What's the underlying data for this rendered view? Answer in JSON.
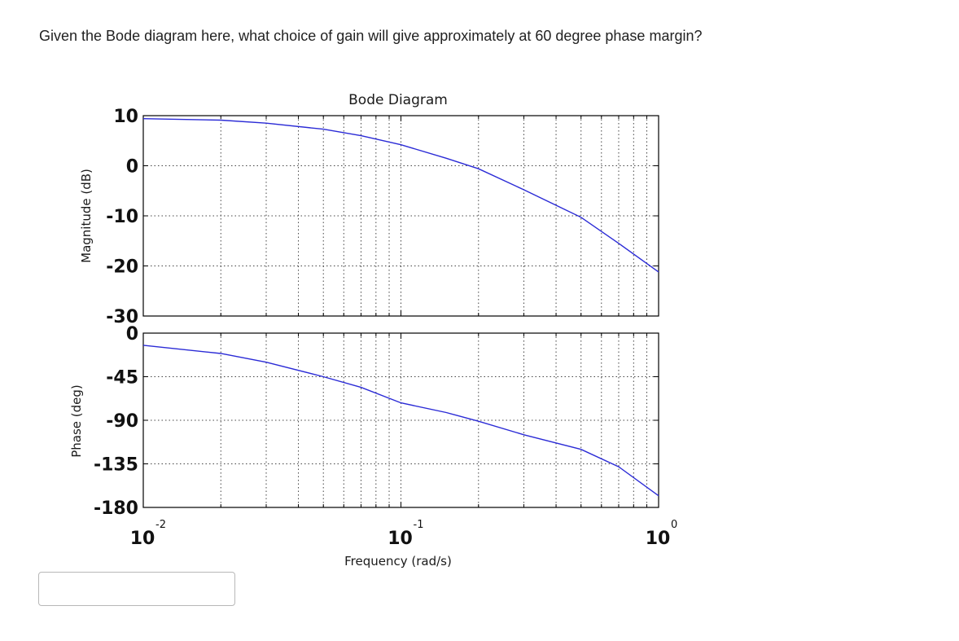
{
  "question": {
    "text": "Given the Bode diagram here, what choice of gain will give approximately at 60 degree phase margin?"
  },
  "answer": {
    "value": "",
    "placeholder": ""
  },
  "colors": {
    "curve": "#2b2bd6",
    "axes": "#000000",
    "grid": "#444444"
  },
  "chart_data": {
    "type": "line",
    "title": "Bode Diagram",
    "xlabel": "Frequency  (rad/s)",
    "xscale": "log",
    "xlim": [
      0.01,
      1
    ],
    "x_ticks": [
      {
        "base": "10",
        "exp": "-2",
        "value": 0.01
      },
      {
        "base": "10",
        "exp": "-1",
        "value": 0.1
      },
      {
        "base": "10",
        "exp": "0",
        "value": 1
      }
    ],
    "grid": true,
    "panels": [
      {
        "name": "magnitude",
        "ylabel": "Magnitude (dB)",
        "ylim": [
          -30,
          10
        ],
        "yticks": [
          10,
          0,
          -10,
          -20,
          -30
        ],
        "ytick_labels": [
          "10",
          "0",
          "-10",
          "-20",
          "-30"
        ],
        "series": {
          "x": [
            0.01,
            0.02,
            0.03,
            0.05,
            0.07,
            0.1,
            0.15,
            0.2,
            0.3,
            0.5,
            0.7,
            1.0
          ],
          "y": [
            9.4,
            9.1,
            8.5,
            7.3,
            6.0,
            4.2,
            1.5,
            -0.6,
            -4.8,
            -10.3,
            -15.5,
            -21.2
          ]
        }
      },
      {
        "name": "phase",
        "ylabel": "Phase (deg)",
        "ylim": [
          -180,
          0
        ],
        "yticks": [
          0,
          -45,
          -90,
          -135,
          -180
        ],
        "ytick_labels": [
          "0",
          "-45",
          "-90",
          "-135",
          "-180"
        ],
        "series": {
          "x": [
            0.01,
            0.02,
            0.03,
            0.05,
            0.07,
            0.1,
            0.15,
            0.2,
            0.3,
            0.5,
            0.7,
            1.0
          ],
          "y": [
            -12.5,
            -21,
            -30,
            -45,
            -56,
            -72,
            -82,
            -91,
            -105,
            -120,
            -138,
            -168
          ]
        }
      }
    ]
  }
}
